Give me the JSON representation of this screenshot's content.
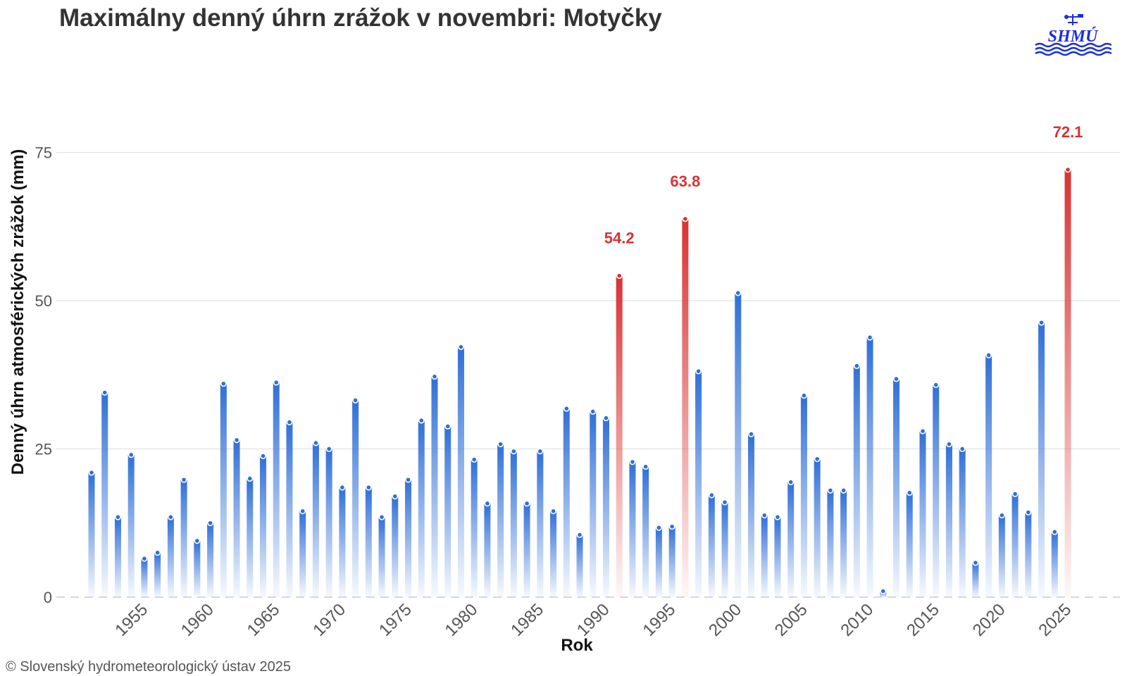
{
  "title": "Maximálny denný úhrn zrážok v novembri: Motyčky",
  "copyright": "© Slovenský hydrometeorologický ústav 2025",
  "logo": {
    "text": "SHMÚ",
    "color": "#1c2ee0"
  },
  "chart_data": {
    "type": "bar",
    "xlabel": "Rok",
    "ylabel": "Denný úhrn atmosférických zrážok (mm)",
    "ylim": [
      0,
      85
    ],
    "yticks": [
      "0",
      "25",
      "50",
      "75"
    ],
    "xticks": [
      "1955",
      "1960",
      "1965",
      "1970",
      "1975",
      "1980",
      "1985",
      "1990",
      "1995",
      "2000",
      "2005",
      "2010",
      "2015",
      "2020",
      "2025"
    ],
    "grid": true,
    "colors": {
      "normal": "#2f6fd8",
      "highlight": "#d93232"
    },
    "years": [
      1951,
      1952,
      1953,
      1954,
      1955,
      1956,
      1957,
      1958,
      1959,
      1960,
      1961,
      1962,
      1963,
      1964,
      1965,
      1966,
      1967,
      1968,
      1969,
      1970,
      1971,
      1972,
      1973,
      1974,
      1975,
      1976,
      1977,
      1978,
      1979,
      1980,
      1981,
      1982,
      1983,
      1984,
      1985,
      1986,
      1987,
      1988,
      1989,
      1990,
      1991,
      1992,
      1993,
      1994,
      1995,
      1996,
      1997,
      1998,
      1999,
      2000,
      2001,
      2002,
      2003,
      2004,
      2005,
      2006,
      2007,
      2008,
      2009,
      2010,
      2011,
      2012,
      2013,
      2014,
      2015,
      2016,
      2017,
      2018,
      2019,
      2020,
      2021,
      2022,
      2023,
      2024,
      2025
    ],
    "values": [
      21,
      34.5,
      13.5,
      24,
      6.5,
      7.5,
      13.5,
      19.8,
      9.5,
      12.5,
      36,
      26.5,
      20,
      23.8,
      36.2,
      29.5,
      14.5,
      26,
      25,
      18.5,
      33.2,
      18.5,
      13.5,
      17,
      19.8,
      29.8,
      37.2,
      28.8,
      42.2,
      23.2,
      15.8,
      25.8,
      24.6,
      15.8,
      24.6,
      14.5,
      31.8,
      10.5,
      31.3,
      30.2,
      54.2,
      22.8,
      22,
      11.7,
      11.9,
      63.8,
      38.1,
      17.2,
      16,
      51.3,
      27.5,
      13.8,
      13.5,
      19.4,
      34,
      23.3,
      18,
      18,
      39,
      43.8,
      1,
      36.8,
      17.6,
      28,
      35.8,
      25.8,
      25,
      5.8,
      40.8,
      13.8,
      17.4,
      14.3,
      46.3,
      11,
      72.1
    ],
    "highlights": [
      {
        "year": 1991,
        "label": "54.2"
      },
      {
        "year": 1996,
        "label": "63.8"
      },
      {
        "year": 2025,
        "label": "72.1"
      }
    ]
  }
}
